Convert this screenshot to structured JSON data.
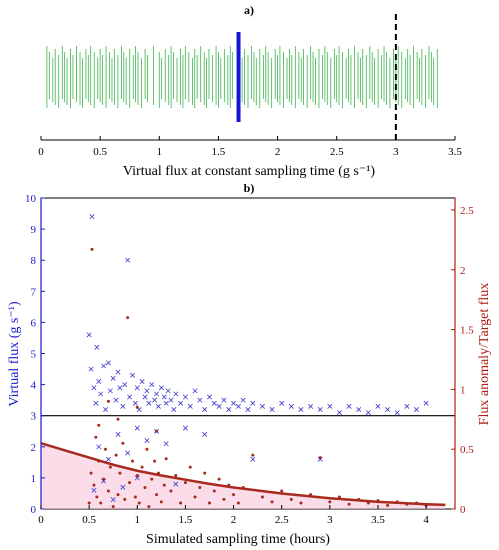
{
  "chart_data": [
    {
      "type": "strip",
      "title": "a)",
      "xlabel": "Virtual flux at constant sampling time (g s⁻¹)",
      "xlim": [
        0,
        3.5
      ],
      "xticks": [
        0,
        0.5,
        1,
        1.5,
        2,
        2.5,
        3,
        3.5
      ],
      "tick_labels": [
        "0",
        "0.5",
        "1",
        "1.5",
        "2",
        "2.5",
        "3",
        "3.5"
      ],
      "events": [
        0.05,
        0.07,
        0.1,
        0.12,
        0.15,
        0.18,
        0.2,
        0.22,
        0.25,
        0.27,
        0.3,
        0.33,
        0.35,
        0.38,
        0.4,
        0.42,
        0.45,
        0.48,
        0.5,
        0.52,
        0.55,
        0.58,
        0.6,
        0.62,
        0.65,
        0.68,
        0.7,
        0.72,
        0.75,
        0.78,
        0.8,
        0.82,
        0.85,
        0.88,
        0.9,
        0.95,
        1.0,
        1.02,
        1.05,
        1.08,
        1.1,
        1.12,
        1.15,
        1.18,
        1.2,
        1.22,
        1.25,
        1.28,
        1.3,
        1.32,
        1.35,
        1.38,
        1.4,
        1.42,
        1.45,
        1.48,
        1.5,
        1.52,
        1.55,
        1.58,
        1.6,
        1.62,
        1.7,
        1.72,
        1.75,
        1.78,
        1.8,
        1.82,
        1.85,
        1.88,
        1.9,
        1.92,
        1.95,
        1.98,
        2.0,
        2.02,
        2.05,
        2.08,
        2.1,
        2.12,
        2.15,
        2.18,
        2.2,
        2.22,
        2.25,
        2.28,
        2.3,
        2.32,
        2.35,
        2.38,
        2.4,
        2.42,
        2.45,
        2.48,
        2.5,
        2.52,
        2.55,
        2.58,
        2.6,
        2.62,
        2.65,
        2.68,
        2.7,
        2.72,
        2.75,
        2.78,
        2.8,
        2.82,
        2.85,
        2.88,
        2.9,
        2.92,
        2.95,
        2.98,
        3.0,
        3.02,
        3.05,
        3.08,
        3.1,
        3.12,
        3.15,
        3.18,
        3.2,
        3.22,
        3.25,
        3.28,
        3.3,
        3.32,
        3.35
      ],
      "marker_value": 1.67,
      "reference_value": 3.0,
      "colors": {
        "events": "#3cb44b",
        "marker": "#1515d5",
        "reference": "#000000"
      }
    },
    {
      "type": "scatter",
      "title": "b)",
      "xlabel": "Simulated sampling time (hours)",
      "ylabel_left": "Virtual flux (g s⁻¹)",
      "ylabel_right": "Flux anomaly/Target flux",
      "xlim": [
        0,
        4.3
      ],
      "ylim_left": [
        0,
        10
      ],
      "ylim_right": [
        0,
        2.6
      ],
      "xticks": [
        0,
        0.5,
        1,
        1.5,
        2,
        2.5,
        3,
        3.5,
        4
      ],
      "xtick_labels": [
        "0",
        "0.5",
        "1",
        "1.5",
        "2",
        "2.5",
        "3",
        "3.5",
        "4"
      ],
      "yticks_left": [
        0,
        1,
        2,
        3,
        4,
        5,
        6,
        7,
        8,
        9,
        10
      ],
      "ytick_labels_left": [
        "0",
        "1",
        "2",
        "3",
        "4",
        "5",
        "6",
        "7",
        "8",
        "9",
        "10"
      ],
      "yticks_right": [
        0,
        0.5,
        1,
        1.5,
        2,
        2.5
      ],
      "ytick_labels_right": [
        "0",
        "0.5",
        "1",
        "1.5",
        "2",
        "2.5"
      ],
      "target_flux": 3,
      "series": [
        {
          "axis": "left",
          "marker": "x",
          "color": "#3b3bd6",
          "points": [
            [
              0.5,
              5.6
            ],
            [
              0.52,
              4.5
            ],
            [
              0.53,
              9.4
            ],
            [
              0.55,
              3.9
            ],
            [
              0.57,
              3.4
            ],
            [
              0.58,
              5.2
            ],
            [
              0.6,
              4.1
            ],
            [
              0.62,
              3.7
            ],
            [
              0.65,
              4.6
            ],
            [
              0.67,
              3.2
            ],
            [
              0.7,
              4.7
            ],
            [
              0.72,
              3.8
            ],
            [
              0.75,
              4.2
            ],
            [
              0.78,
              3.5
            ],
            [
              0.8,
              4.4
            ],
            [
              0.82,
              3.9
            ],
            [
              0.85,
              3.3
            ],
            [
              0.87,
              4.0
            ],
            [
              0.9,
              8.0
            ],
            [
              0.92,
              3.6
            ],
            [
              0.95,
              4.3
            ],
            [
              0.98,
              3.4
            ],
            [
              1.0,
              3.9
            ],
            [
              1.02,
              3.2
            ],
            [
              1.05,
              4.1
            ],
            [
              1.08,
              3.6
            ],
            [
              1.1,
              3.8
            ],
            [
              1.12,
              3.4
            ],
            [
              1.15,
              4.0
            ],
            [
              1.18,
              3.5
            ],
            [
              1.2,
              3.7
            ],
            [
              1.22,
              3.3
            ],
            [
              1.25,
              3.9
            ],
            [
              1.28,
              3.6
            ],
            [
              1.3,
              3.4
            ],
            [
              1.32,
              3.8
            ],
            [
              1.35,
              3.5
            ],
            [
              1.38,
              3.2
            ],
            [
              1.4,
              3.7
            ],
            [
              1.45,
              3.4
            ],
            [
              1.5,
              3.6
            ],
            [
              1.55,
              3.3
            ],
            [
              1.6,
              3.8
            ],
            [
              1.65,
              3.5
            ],
            [
              1.7,
              3.2
            ],
            [
              1.75,
              3.6
            ],
            [
              1.8,
              3.4
            ],
            [
              1.85,
              3.3
            ],
            [
              1.9,
              3.5
            ],
            [
              1.95,
              3.2
            ],
            [
              2.0,
              3.4
            ],
            [
              2.05,
              3.3
            ],
            [
              2.1,
              3.5
            ],
            [
              2.15,
              3.2
            ],
            [
              2.2,
              3.4
            ],
            [
              2.3,
              3.3
            ],
            [
              2.4,
              3.2
            ],
            [
              2.5,
              3.4
            ],
            [
              2.6,
              3.3
            ],
            [
              2.7,
              3.2
            ],
            [
              2.8,
              3.3
            ],
            [
              2.9,
              3.2
            ],
            [
              3.0,
              3.3
            ],
            [
              3.1,
              3.1
            ],
            [
              3.2,
              3.3
            ],
            [
              3.3,
              3.2
            ],
            [
              3.4,
              3.1
            ],
            [
              3.5,
              3.3
            ],
            [
              3.6,
              3.2
            ],
            [
              3.7,
              3.1
            ],
            [
              3.8,
              3.3
            ],
            [
              3.9,
              3.2
            ],
            [
              4.0,
              3.4
            ],
            [
              0.6,
              2.0
            ],
            [
              0.7,
              1.6
            ],
            [
              0.8,
              2.4
            ],
            [
              0.9,
              1.8
            ],
            [
              1.0,
              2.6
            ],
            [
              1.1,
              2.2
            ],
            [
              1.2,
              2.5
            ],
            [
              1.3,
              2.1
            ],
            [
              1.5,
              2.6
            ],
            [
              1.7,
              2.4
            ],
            [
              2.2,
              1.6
            ],
            [
              2.9,
              1.6
            ],
            [
              0.55,
              0.6
            ],
            [
              0.65,
              0.9
            ],
            [
              0.75,
              0.3
            ],
            [
              0.85,
              0.7
            ],
            [
              1.0,
              1.0
            ],
            [
              1.4,
              0.8
            ]
          ]
        },
        {
          "axis": "right",
          "marker": "dot",
          "color": "#a82a1e",
          "points": [
            [
              0.5,
              0.05
            ],
            [
              0.52,
              0.3
            ],
            [
              0.53,
              2.17
            ],
            [
              0.55,
              0.2
            ],
            [
              0.57,
              0.6
            ],
            [
              0.58,
              0.1
            ],
            [
              0.6,
              0.4
            ],
            [
              0.62,
              0.05
            ],
            [
              0.65,
              0.25
            ],
            [
              0.67,
              0.5
            ],
            [
              0.7,
              0.15
            ],
            [
              0.72,
              0.35
            ],
            [
              0.75,
              0.02
            ],
            [
              0.78,
              0.45
            ],
            [
              0.8,
              0.12
            ],
            [
              0.82,
              0.3
            ],
            [
              0.85,
              0.55
            ],
            [
              0.87,
              0.08
            ],
            [
              0.9,
              1.6
            ],
            [
              0.92,
              0.22
            ],
            [
              0.95,
              0.4
            ],
            [
              0.98,
              0.1
            ],
            [
              1.0,
              0.28
            ],
            [
              1.02,
              0.05
            ],
            [
              1.05,
              0.35
            ],
            [
              1.08,
              0.18
            ],
            [
              1.1,
              0.5
            ],
            [
              1.12,
              0.02
            ],
            [
              1.15,
              0.25
            ],
            [
              1.18,
              0.4
            ],
            [
              1.2,
              0.12
            ],
            [
              1.22,
              0.3
            ],
            [
              1.25,
              0.06
            ],
            [
              1.28,
              0.2
            ],
            [
              1.3,
              0.42
            ],
            [
              1.35,
              0.15
            ],
            [
              1.4,
              0.28
            ],
            [
              1.45,
              0.05
            ],
            [
              1.5,
              0.22
            ],
            [
              1.55,
              0.35
            ],
            [
              1.6,
              0.1
            ],
            [
              1.65,
              0.18
            ],
            [
              1.7,
              0.3
            ],
            [
              1.75,
              0.05
            ],
            [
              1.8,
              0.15
            ],
            [
              1.85,
              0.25
            ],
            [
              1.9,
              0.08
            ],
            [
              1.95,
              0.2
            ],
            [
              2.0,
              0.12
            ],
            [
              2.05,
              0.05
            ],
            [
              2.1,
              0.18
            ],
            [
              2.2,
              0.45
            ],
            [
              2.3,
              0.1
            ],
            [
              2.4,
              0.06
            ],
            [
              2.5,
              0.15
            ],
            [
              2.6,
              0.08
            ],
            [
              2.7,
              0.05
            ],
            [
              2.8,
              0.12
            ],
            [
              2.9,
              0.43
            ],
            [
              3.0,
              0.06
            ],
            [
              3.1,
              0.1
            ],
            [
              3.2,
              0.04
            ],
            [
              3.3,
              0.08
            ],
            [
              3.4,
              0.05
            ],
            [
              3.5,
              0.07
            ],
            [
              3.6,
              0.03
            ],
            [
              3.7,
              0.06
            ],
            [
              3.8,
              0.04
            ],
            [
              3.9,
              0.05
            ],
            [
              4.0,
              0.03
            ],
            [
              0.6,
              0.7
            ],
            [
              0.7,
              0.9
            ],
            [
              0.8,
              0.75
            ],
            [
              1.0,
              0.85
            ],
            [
              1.2,
              0.65
            ]
          ]
        }
      ],
      "fit_curve": {
        "axis": "right",
        "color": "#a82a1e",
        "points": [
          [
            0,
            0.55
          ],
          [
            0.25,
            0.49
          ],
          [
            0.5,
            0.43
          ],
          [
            0.75,
            0.37
          ],
          [
            1.0,
            0.32
          ],
          [
            1.25,
            0.28
          ],
          [
            1.5,
            0.245
          ],
          [
            1.75,
            0.21
          ],
          [
            2.0,
            0.18
          ],
          [
            2.25,
            0.155
          ],
          [
            2.5,
            0.13
          ],
          [
            2.75,
            0.11
          ],
          [
            3.0,
            0.09
          ],
          [
            3.25,
            0.075
          ],
          [
            3.5,
            0.06
          ],
          [
            3.75,
            0.05
          ],
          [
            4.0,
            0.04
          ],
          [
            4.2,
            0.035
          ]
        ]
      },
      "colors": {
        "left_axis": "#1a1acc",
        "right_axis": "#b11a10",
        "shade": "#f7c6d8"
      }
    }
  ]
}
